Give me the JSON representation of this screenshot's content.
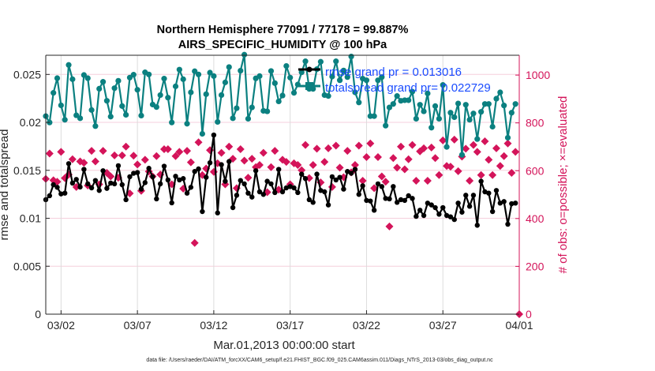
{
  "chart_data": {
    "type": "line",
    "title": "Northern Hemisphere 77091 / 77178 = 99.887%",
    "subtitle": "AIRS_SPECIFIC_HUMIDITY @ 100 hPa",
    "xlabel": "Mar.01,2013 00:00:00 start",
    "ylabel_left": "rmse and totalspread",
    "ylabel_right": "# of obs: o=possible; ×=evaluated",
    "footnote": "data file: /Users/raeder/DAI/ATM_forcXX/CAM6_setup/f.e21.FHIST_BGC.f09_025.CAM6assim.011/Diags_NTrS_2013-03/obs_diag_output.nc",
    "xlim": [
      "03/01 00:00",
      "04/01 00:00"
    ],
    "ylim_left": [
      0,
      0.027
    ],
    "ylim_right": [
      0,
      1083
    ],
    "x_ticks": [
      "03/02",
      "03/07",
      "03/12",
      "03/17",
      "03/22",
      "03/27",
      "04/01"
    ],
    "y_ticks_left": [
      "0",
      "0.005",
      "0.01",
      "0.015",
      "0.02",
      "0.025"
    ],
    "y_ticks_right": [
      "0",
      "200",
      "400",
      "600",
      "800",
      "1000"
    ],
    "grid": true,
    "legend_position": "top-center",
    "colors": {
      "rmse": "#000000",
      "totalspread": "#0b8080",
      "obs": "#d4145a",
      "legend_text": "#1a4cff",
      "right_axis": "#d4145a"
    },
    "legend": [
      {
        "label": "rmse grand pr = 0.013016",
        "series": "rmse"
      },
      {
        "label": "totalspread grand pr= 0.022729",
        "series": "totalspread"
      }
    ],
    "x": [
      "03/01 00:00",
      "03/01 06:00",
      "03/01 12:00",
      "03/01 18:00",
      "03/02 00:00",
      "03/02 06:00",
      "03/02 12:00",
      "03/02 18:00",
      "03/03 00:00",
      "03/03 06:00",
      "03/03 12:00",
      "03/03 18:00",
      "03/04 00:00",
      "03/04 06:00",
      "03/04 12:00",
      "03/04 18:00",
      "03/05 00:00",
      "03/05 06:00",
      "03/05 12:00",
      "03/05 18:00",
      "03/06 00:00",
      "03/06 06:00",
      "03/06 12:00",
      "03/06 18:00",
      "03/07 00:00",
      "03/07 06:00",
      "03/07 12:00",
      "03/07 18:00",
      "03/08 00:00",
      "03/08 06:00",
      "03/08 12:00",
      "03/08 18:00",
      "03/09 00:00",
      "03/09 06:00",
      "03/09 12:00",
      "03/09 18:00",
      "03/10 00:00",
      "03/10 06:00",
      "03/10 12:00",
      "03/10 18:00",
      "03/11 00:00",
      "03/11 06:00",
      "03/11 12:00",
      "03/11 18:00",
      "03/12 00:00",
      "03/12 06:00",
      "03/12 12:00",
      "03/12 18:00",
      "03/13 00:00",
      "03/13 06:00",
      "03/13 12:00",
      "03/13 18:00",
      "03/14 00:00",
      "03/14 06:00",
      "03/14 12:00",
      "03/14 18:00",
      "03/15 00:00",
      "03/15 06:00",
      "03/15 12:00",
      "03/15 18:00",
      "03/16 00:00",
      "03/16 06:00",
      "03/16 12:00",
      "03/16 18:00",
      "03/17 00:00",
      "03/17 06:00",
      "03/17 12:00",
      "03/17 18:00",
      "03/18 00:00",
      "03/18 06:00",
      "03/18 12:00",
      "03/18 18:00",
      "03/19 00:00",
      "03/19 06:00",
      "03/19 12:00",
      "03/19 18:00",
      "03/20 00:00",
      "03/20 06:00",
      "03/20 12:00",
      "03/20 18:00",
      "03/21 00:00",
      "03/21 06:00",
      "03/21 12:00",
      "03/21 18:00",
      "03/22 00:00",
      "03/22 06:00",
      "03/22 12:00",
      "03/22 18:00",
      "03/23 00:00",
      "03/23 06:00",
      "03/23 12:00",
      "03/23 18:00",
      "03/24 00:00",
      "03/24 06:00",
      "03/24 12:00",
      "03/24 18:00",
      "03/25 00:00",
      "03/25 06:00",
      "03/25 12:00",
      "03/25 18:00",
      "03/26 00:00",
      "03/26 06:00",
      "03/26 12:00",
      "03/26 18:00",
      "03/27 00:00",
      "03/27 06:00",
      "03/27 12:00",
      "03/27 18:00",
      "03/28 00:00",
      "03/28 06:00",
      "03/28 12:00",
      "03/28 18:00",
      "03/29 00:00",
      "03/29 06:00",
      "03/29 12:00",
      "03/29 18:00",
      "03/30 00:00",
      "03/30 06:00",
      "03/30 12:00",
      "03/30 18:00",
      "03/31 00:00",
      "03/31 06:00",
      "03/31 12:00",
      "03/31 18:00",
      "04/01 00:00"
    ],
    "series": [
      {
        "key": "totalspread",
        "axis": "left",
        "style": "line-circle",
        "values": [
          0.02065,
          0.01999,
          0.02308,
          0.02461,
          0.02178,
          0.02027,
          0.02599,
          0.0245,
          0.02074,
          0.02043,
          0.02494,
          0.02461,
          0.02129,
          0.01961,
          0.02351,
          0.02423,
          0.02225,
          0.0206,
          0.02357,
          0.02434,
          0.0217,
          0.02079,
          0.02467,
          0.02497,
          0.0234,
          0.02071,
          0.02522,
          0.025,
          0.02186,
          0.0216,
          0.02285,
          0.02456,
          0.02258,
          0.01999,
          0.02376,
          0.0255,
          0.0245,
          0.01986,
          0.02313,
          0.02533,
          0.025,
          0.01881,
          0.02294,
          0.02519,
          0.02483,
          0.02005,
          0.02285,
          0.02417,
          0.02577,
          0.02043,
          0.02148,
          0.02539,
          0.02706,
          0.02038,
          0.02156,
          0.02459,
          0.02483,
          0.0212,
          0.02115,
          0.02536,
          0.02409,
          0.02219,
          0.0228,
          0.02588,
          0.02467,
          0.02308,
          0.02395,
          0.02522,
          0.02637,
          0.02349,
          0.02349,
          0.02555,
          0.02632,
          0.02285,
          0.02275,
          0.02478,
          0.02637,
          0.02439,
          0.02541,
          0.02472,
          0.02687,
          0.02313,
          0.02208,
          0.02456,
          0.02439,
          0.02065,
          0.02065,
          0.02439,
          0.02472,
          0.01966,
          0.02156,
          0.02192,
          0.02275,
          0.02225,
          0.02231,
          0.02231,
          0.02321,
          0.02038,
          0.02184,
          0.02115,
          0.02302,
          0.01945,
          0.0217,
          0.02038,
          0.0239,
          0.01744,
          0.02101,
          0.02054,
          0.02197,
          0.01661,
          0.02184,
          0.02027,
          0.02093,
          0.01826,
          0.0211,
          0.02192,
          0.02192,
          0.01955,
          0.02247,
          0.02313,
          0.02176,
          0.0184,
          0.02101,
          0.02192,
          null
        ]
      },
      {
        "key": "rmse",
        "axis": "left",
        "style": "line-dot",
        "values": [
          0.01194,
          0.01235,
          0.0135,
          0.01323,
          0.01254,
          0.01262,
          0.0157,
          0.01367,
          0.01405,
          0.01326,
          0.0151,
          0.01359,
          0.01317,
          0.01394,
          0.0129,
          0.01496,
          0.01312,
          0.01367,
          0.01359,
          0.01548,
          0.0135,
          0.01194,
          0.01433,
          0.01469,
          0.01477,
          0.01304,
          0.01372,
          0.01521,
          0.01433,
          0.01202,
          0.01359,
          0.01543,
          0.014,
          0.01161,
          0.01438,
          0.014,
          0.01414,
          0.01262,
          0.01323,
          0.01488,
          0.01515,
          0.0107,
          0.01427,
          0.01579,
          0.01868,
          0.01056,
          0.01559,
          0.01386,
          0.01592,
          0.01111,
          0.0124,
          0.01394,
          0.01359,
          0.01262,
          0.01221,
          0.01496,
          0.01276,
          0.01249,
          0.01386,
          0.01359,
          0.01268,
          0.0151,
          0.01276,
          0.01317,
          0.01331,
          0.01317,
          0.01268,
          0.0146,
          0.01414,
          0.01194,
          0.01166,
          0.0146,
          0.0129,
          0.01276,
          0.01139,
          0.01433,
          0.014,
          0.01427,
          0.01304,
          0.01488,
          0.01469,
          0.0151,
          0.01249,
          0.01339,
          0.01186,
          0.0118,
          0.01084,
          0.01359,
          0.01331,
          0.01207,
          0.01202,
          0.01331,
          0.01166,
          0.01194,
          0.01186,
          0.01235,
          0.01207,
          0.0102,
          0.01084,
          0.01029,
          0.01158,
          0.01139,
          0.01111,
          0.01042,
          0.01111,
          0.01029,
          0.01015,
          0.00987,
          0.01158,
          0.01064,
          0.0124,
          0.01125,
          0.0124,
          0.00927,
          0.01386,
          0.01276,
          0.01262,
          0.0107,
          0.0129,
          0.01158,
          0.01174,
          0.00938,
          0.01152,
          0.01158,
          null
        ]
      },
      {
        "key": "obs",
        "axis": "right",
        "style": "diamond",
        "values": [
          566,
          672,
          560,
          554,
          679,
          569,
          584,
          648,
          532,
          639,
          633,
          538,
          683,
          639,
          543,
          683,
          591,
          576,
          664,
          571,
          664,
          701,
          505,
          663,
          626,
          516,
          646,
          597,
          576,
          661,
          584,
          690,
          690,
          543,
          661,
          679,
          525,
          683,
          635,
          298,
          719,
          582,
          609,
          686,
          595,
          631,
          675,
          543,
          701,
          650,
          527,
          690,
          642,
          571,
          650,
          615,
          624,
          675,
          510,
          615,
          683,
          521,
          646,
          637,
          543,
          631,
          624,
          602,
          708,
          569,
          624,
          692,
          551,
          637,
          694,
          532,
          705,
          613,
          573,
          683,
          593,
          624,
          705,
          558,
          657,
          714,
          527,
          657,
          576,
          554,
          367,
          653,
          613,
          701,
          606,
          648,
          708,
          558,
          681,
          694,
          558,
          697,
          653,
          582,
          727,
          620,
          617,
          730,
          598,
          659,
          692,
          558,
          708,
          679,
          582,
          723,
          646,
          582,
          694,
          620,
          661,
          714,
          591,
          679,
          0
        ]
      }
    ]
  }
}
